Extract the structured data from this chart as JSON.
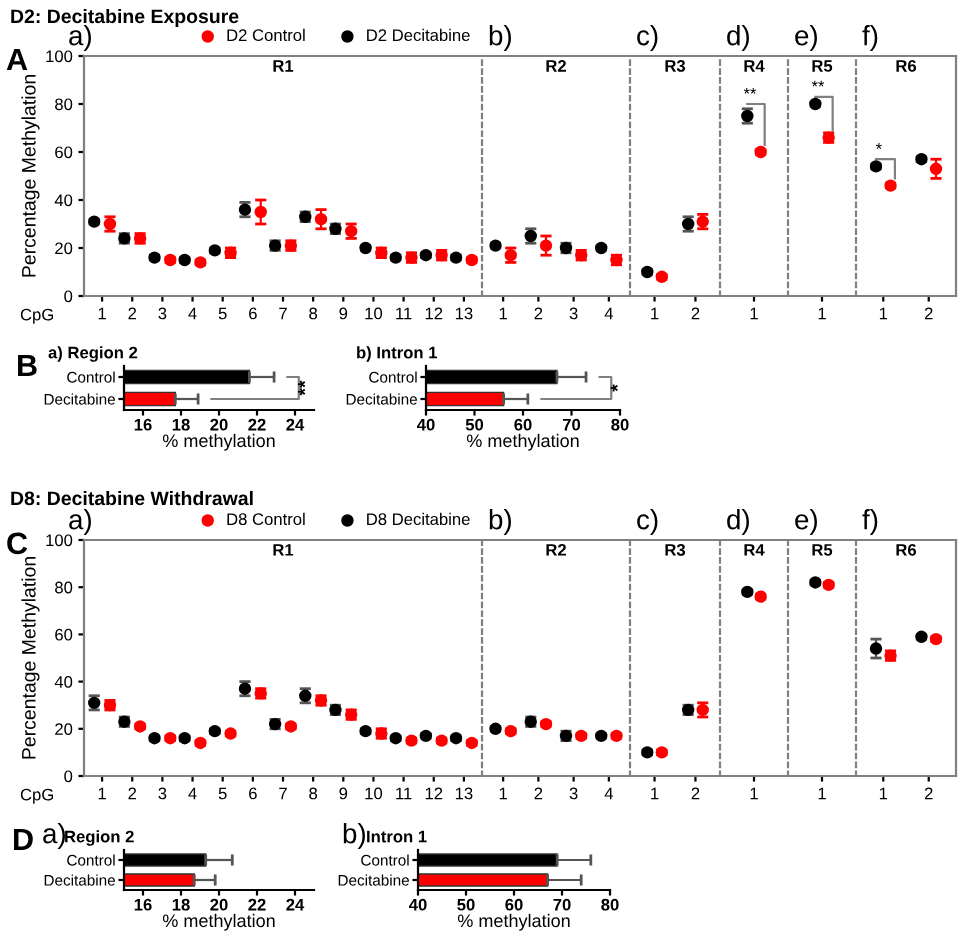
{
  "chart_data": [
    {
      "type": "scatter",
      "title": "R1",
      "ylabel": "Percentage Methylation",
      "annotations": [
        "D2: Decitabine Exposure",
        "A",
        "a)",
        "CpG"
      ],
      "categories": [
        "1",
        "2",
        "3",
        "4",
        "5",
        "6",
        "7",
        "8",
        "9",
        "10",
        "11",
        "12",
        "13"
      ],
      "legend": "top",
      "marker": "circle",
      "ylim": [
        0,
        100
      ],
      "yticks": [
        0,
        20,
        40,
        60,
        80,
        100
      ],
      "series": [
        {
          "name": "D2 Control",
          "color": "#ff0000",
          "values": [
            30,
            24,
            15,
            14,
            18,
            35,
            21,
            32,
            27,
            18,
            16,
            17,
            15
          ],
          "errors": [
            3,
            2,
            1,
            1,
            2,
            5,
            2,
            4,
            3,
            2,
            2,
            2,
            1
          ]
        },
        {
          "name": "D2 Decitabine",
          "color": "#000000",
          "values": [
            31,
            24,
            16,
            15,
            19,
            36,
            21,
            33,
            28,
            20,
            16,
            17,
            16
          ],
          "errors": [
            1,
            2,
            1,
            1,
            1,
            3,
            2,
            2,
            2,
            1,
            1,
            1,
            1
          ]
        }
      ]
    },
    {
      "type": "scatter",
      "title": "R2",
      "annotations": [
        "b)"
      ],
      "categories": [
        "1",
        "2",
        "3",
        "4"
      ],
      "marker": "circle",
      "ylim": [
        0,
        100
      ],
      "tick_labels": "x",
      "series": [
        {
          "color": "#ff0000",
          "values": [
            17,
            21,
            17,
            15
          ],
          "errors": [
            3,
            4,
            2,
            2
          ]
        },
        {
          "color": "#000000",
          "values": [
            21,
            25,
            20,
            20
          ],
          "errors": [
            1,
            3,
            2,
            1
          ]
        }
      ]
    },
    {
      "type": "scatter",
      "title": "R3",
      "annotations": [
        "c)"
      ],
      "categories": [
        "1",
        "2"
      ],
      "marker": "circle",
      "ylim": [
        0,
        100
      ],
      "tick_labels": "x",
      "series": [
        {
          "color": "#ff0000",
          "values": [
            8,
            31
          ],
          "errors": [
            1,
            3
          ]
        },
        {
          "color": "#000000",
          "values": [
            10,
            30
          ],
          "errors": [
            1,
            3
          ]
        }
      ]
    },
    {
      "type": "scatter",
      "title": "R4",
      "annotations": [
        "d)",
        "**"
      ],
      "categories": [
        "1"
      ],
      "marker": "circle",
      "ylim": [
        0,
        100
      ],
      "tick_labels": "x",
      "series": [
        {
          "color": "#ff0000",
          "values": [
            60
          ],
          "errors": [
            1
          ]
        },
        {
          "color": "#000000",
          "values": [
            75
          ],
          "errors": [
            3
          ]
        }
      ]
    },
    {
      "type": "scatter",
      "title": "R5",
      "annotations": [
        "e)",
        "**"
      ],
      "categories": [
        "1"
      ],
      "marker": "circle",
      "ylim": [
        0,
        100
      ],
      "tick_labels": "x",
      "series": [
        {
          "color": "#ff0000",
          "values": [
            66
          ],
          "errors": [
            2
          ]
        },
        {
          "color": "#000000",
          "values": [
            80
          ],
          "errors": [
            1
          ]
        }
      ]
    },
    {
      "type": "scatter",
      "title": "R6",
      "annotations": [
        "f)",
        "*"
      ],
      "categories": [
        "1",
        "2"
      ],
      "marker": "circle",
      "ylim": [
        0,
        100
      ],
      "tick_labels": "x",
      "series": [
        {
          "color": "#ff0000",
          "values": [
            46,
            53
          ],
          "errors": [
            1,
            4
          ]
        },
        {
          "color": "#000000",
          "values": [
            54,
            57
          ],
          "errors": [
            1,
            1
          ]
        }
      ]
    },
    {
      "type": "bar",
      "orientation": "horizontal",
      "title": "a) Region 2",
      "xlabel": "% methylation",
      "annotations": [
        "B",
        "**"
      ],
      "categories": [
        "Control",
        "Decitabine"
      ],
      "values": [
        21.6,
        17.7
      ],
      "colors": [
        "#000000",
        "#ff0000"
      ],
      "errors": [
        [
          21.6,
          22.9
        ],
        [
          17.7,
          18.9
        ]
      ],
      "xlim": [
        15,
        25
      ],
      "xticks": [
        16,
        18,
        20,
        22,
        24
      ]
    },
    {
      "type": "bar",
      "orientation": "horizontal",
      "title": "b) Intron 1",
      "xlabel": "% methylation",
      "annotations": [
        "*"
      ],
      "categories": [
        "Control",
        "Decitabine"
      ],
      "values": [
        67,
        56
      ],
      "colors": [
        "#000000",
        "#ff0000"
      ],
      "errors": [
        [
          67,
          73
        ],
        [
          56,
          61
        ]
      ],
      "xlim": [
        40,
        80
      ],
      "xticks": [
        40,
        50,
        60,
        70,
        80
      ]
    },
    {
      "type": "scatter",
      "title": "R1",
      "ylabel": "Percentage Methylation",
      "annotations": [
        "D8: Decitabine Withdrawal",
        "C",
        "a)",
        "CpG"
      ],
      "categories": [
        "1",
        "2",
        "3",
        "4",
        "5",
        "6",
        "7",
        "8",
        "9",
        "10",
        "11",
        "12",
        "13"
      ],
      "legend": "top",
      "marker": "circle",
      "ylim": [
        0,
        100
      ],
      "yticks": [
        0,
        20,
        40,
        60,
        80,
        100
      ],
      "series": [
        {
          "name": "D8 Control",
          "color": "#ff0000",
          "values": [
            30,
            21,
            16,
            14,
            18,
            35,
            21,
            32,
            26,
            18,
            15,
            15,
            14
          ],
          "errors": [
            2,
            1,
            1,
            1,
            1,
            2,
            1,
            2,
            2,
            2,
            1,
            1,
            1
          ]
        },
        {
          "name": "D8 Decitabine",
          "color": "#000000",
          "values": [
            31,
            23,
            16,
            16,
            19,
            37,
            22,
            34,
            28,
            19,
            16,
            17,
            16
          ],
          "errors": [
            3,
            2,
            1,
            1,
            1,
            3,
            2,
            3,
            2,
            1,
            1,
            1,
            1
          ]
        }
      ]
    },
    {
      "type": "scatter",
      "title": "R2",
      "annotations": [
        "b)"
      ],
      "categories": [
        "1",
        "2",
        "3",
        "4"
      ],
      "marker": "circle",
      "ylim": [
        0,
        100
      ],
      "tick_labels": "x",
      "series": [
        {
          "color": "#ff0000",
          "values": [
            19,
            22,
            17,
            17
          ],
          "errors": [
            1,
            1,
            1,
            1
          ]
        },
        {
          "color": "#000000",
          "values": [
            20,
            23,
            17,
            17
          ],
          "errors": [
            1,
            2,
            2,
            1
          ]
        }
      ]
    },
    {
      "type": "scatter",
      "title": "R3",
      "annotations": [
        "c)"
      ],
      "categories": [
        "1",
        "2"
      ],
      "marker": "circle",
      "ylim": [
        0,
        100
      ],
      "tick_labels": "x",
      "series": [
        {
          "color": "#ff0000",
          "values": [
            10,
            28
          ],
          "errors": [
            1,
            3
          ]
        },
        {
          "color": "#000000",
          "values": [
            10,
            28
          ],
          "errors": [
            1,
            2
          ]
        }
      ]
    },
    {
      "type": "scatter",
      "title": "R4",
      "annotations": [
        "d)"
      ],
      "categories": [
        "1"
      ],
      "marker": "circle",
      "ylim": [
        0,
        100
      ],
      "tick_labels": "x",
      "series": [
        {
          "color": "#ff0000",
          "values": [
            76
          ],
          "errors": [
            1
          ]
        },
        {
          "color": "#000000",
          "values": [
            78
          ],
          "errors": [
            1
          ]
        }
      ]
    },
    {
      "type": "scatter",
      "title": "R5",
      "annotations": [
        "e)"
      ],
      "categories": [
        "1"
      ],
      "marker": "circle",
      "ylim": [
        0,
        100
      ],
      "tick_labels": "x",
      "series": [
        {
          "color": "#ff0000",
          "values": [
            81
          ],
          "errors": [
            1
          ]
        },
        {
          "color": "#000000",
          "values": [
            82
          ],
          "errors": [
            1
          ]
        }
      ]
    },
    {
      "type": "scatter",
      "title": "R6",
      "annotations": [
        "f)"
      ],
      "categories": [
        "1",
        "2"
      ],
      "marker": "circle",
      "ylim": [
        0,
        100
      ],
      "tick_labels": "x",
      "series": [
        {
          "color": "#ff0000",
          "values": [
            51,
            58
          ],
          "errors": [
            2,
            1
          ]
        },
        {
          "color": "#000000",
          "values": [
            54,
            59
          ],
          "errors": [
            4,
            1
          ]
        }
      ]
    },
    {
      "type": "bar",
      "orientation": "horizontal",
      "title": "Region 2",
      "xlabel": "% methylation",
      "annotations": [
        "D",
        "a)"
      ],
      "categories": [
        "Control",
        "Decitabine"
      ],
      "values": [
        19.3,
        18.7
      ],
      "colors": [
        "#000000",
        "#ff0000"
      ],
      "errors": [
        [
          19.3,
          20.7
        ],
        [
          18.7,
          19.8
        ]
      ],
      "xlim": [
        15,
        25
      ],
      "xticks": [
        16,
        18,
        20,
        22,
        24
      ]
    },
    {
      "type": "bar",
      "orientation": "horizontal",
      "title": "Intron 1",
      "xlabel": "% methylation",
      "annotations": [
        "b)"
      ],
      "categories": [
        "Control",
        "Decitabine"
      ],
      "values": [
        69,
        67
      ],
      "colors": [
        "#000000",
        "#ff0000"
      ],
      "errors": [
        [
          69,
          76
        ],
        [
          67,
          74
        ]
      ],
      "xlim": [
        40,
        80
      ],
      "xticks": [
        40,
        50,
        60,
        70,
        80
      ]
    }
  ]
}
